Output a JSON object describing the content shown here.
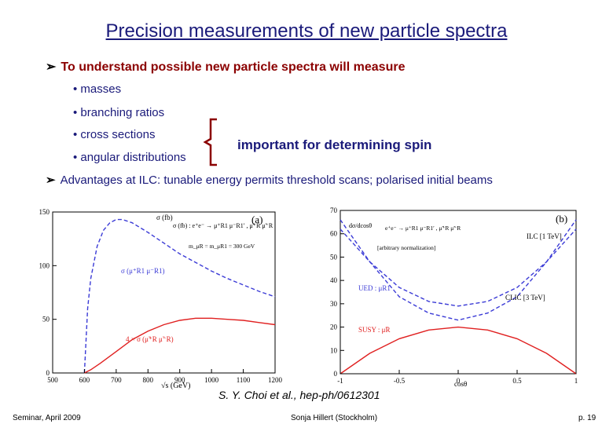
{
  "slide": {
    "title": "Precision measurements of new particle spectra",
    "bullet_main": "To understand possible new particle spectra will measure",
    "sub_bullets": [
      "masses",
      "branching ratios",
      "cross sections",
      "angular distributions"
    ],
    "brace_label": "important for determining spin",
    "bullet_advantages": "Advantages at ILC: tunable energy permits threshold scans; polarised initial beams",
    "citation": "S. Y. Choi et al., hep-ph/0612301"
  },
  "footer": {
    "left": "Seminar, April 2009",
    "center": "Sonja Hillert (Stockholm)",
    "right": "p. 19"
  },
  "colors": {
    "title": "#1a1a7a",
    "bullet": "#8b0000",
    "blue_curve": "#3b3bd6",
    "red_curve": "#e02020"
  },
  "chart_data": [
    {
      "type": "line",
      "panel_label": "(a)",
      "xlabel": "√s (GeV)",
      "ylabel": "σ (fb)",
      "xlim": [
        500,
        1200
      ],
      "ylim": [
        0,
        150
      ],
      "x_ticks": [
        "500",
        "600",
        "700",
        "800",
        "900",
        "1000",
        "1100",
        "1200"
      ],
      "y_ticks": [
        "0",
        "50",
        "100",
        "150"
      ],
      "legend_process": "σ (fb) : e⁺e⁻ → μ⁺R1 μ⁻R1′ , μ̃⁺R μ̃⁻R",
      "legend_mass": "m_μR = m_μR1 = 300 GeV",
      "series": [
        {
          "name": "σ (μ⁺R1 μ⁻R1)",
          "color": "#3b3bd6",
          "style": "dashed",
          "x": [
            600,
            610,
            620,
            640,
            660,
            680,
            700,
            720,
            750,
            800,
            850,
            900,
            950,
            1000,
            1050,
            1100,
            1150,
            1200
          ],
          "y": [
            0,
            60,
            88,
            118,
            133,
            140,
            143,
            143,
            140,
            131,
            121,
            111,
            103,
            95,
            88,
            82,
            76,
            71
          ]
        },
        {
          "name": "4 × σ (μ̃⁺R μ̃⁻R)",
          "color": "#e02020",
          "style": "solid",
          "x": [
            600,
            620,
            650,
            700,
            750,
            800,
            850,
            900,
            950,
            1000,
            1050,
            1100,
            1150,
            1200
          ],
          "y": [
            0,
            3,
            9,
            20,
            31,
            39,
            45,
            49,
            51,
            51,
            50,
            49,
            47,
            45
          ]
        }
      ]
    },
    {
      "type": "line",
      "panel_label": "(b)",
      "xlabel": "cosθ",
      "ylabel": "dσ/dcosθ",
      "xlim": [
        -1,
        1
      ],
      "ylim": [
        0,
        70
      ],
      "x_ticks": [
        "-1",
        "-0.5",
        "0",
        "0.5",
        "1"
      ],
      "y_ticks": [
        "0",
        "10",
        "20",
        "30",
        "40",
        "50",
        "60",
        "70"
      ],
      "legend_process": "e⁺e⁻ → μ⁺R1 μ⁻R1′ , μ̃⁺R μ̃⁻R",
      "legend_norm": "[arbitrary normalization]",
      "annotations": [
        "ILC [1 TeV]",
        "CLIC [3 TeV]",
        "UED : μR1",
        "SUSY : μ̃R"
      ],
      "series": [
        {
          "name": "UED ILC [1 TeV]",
          "color": "#3b3bd6",
          "style": "dashed",
          "x": [
            -1,
            -0.75,
            -0.5,
            -0.25,
            0,
            0.25,
            0.5,
            0.75,
            1
          ],
          "y": [
            62,
            48,
            37,
            31,
            29,
            31,
            37,
            48,
            62
          ]
        },
        {
          "name": "UED CLIC [3 TeV]",
          "color": "#3b3bd6",
          "style": "dashed",
          "x": [
            -1,
            -0.75,
            -0.5,
            -0.25,
            0,
            0.25,
            0.5,
            0.75,
            1
          ],
          "y": [
            66,
            48,
            33,
            26,
            23,
            26,
            33,
            48,
            66
          ]
        },
        {
          "name": "SUSY",
          "color": "#e02020",
          "style": "solid",
          "x": [
            -1,
            -0.75,
            -0.5,
            -0.25,
            0,
            0.25,
            0.5,
            0.75,
            1
          ],
          "y": [
            0,
            8.75,
            15,
            18.75,
            20,
            18.75,
            15,
            8.75,
            0
          ]
        }
      ]
    }
  ]
}
